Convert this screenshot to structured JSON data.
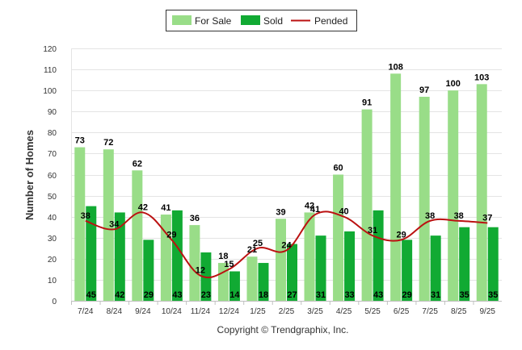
{
  "chart_data": {
    "type": "bar",
    "title": "",
    "xlabel": "",
    "ylabel": "Number of Homes",
    "ylim": [
      0,
      120
    ],
    "yticks": [
      0,
      10,
      20,
      30,
      40,
      50,
      60,
      70,
      80,
      90,
      100,
      110,
      120
    ],
    "grid": true,
    "legend_position": "top-center",
    "categories": [
      "7/24",
      "8/24",
      "9/24",
      "10/24",
      "11/24",
      "12/24",
      "1/25",
      "2/25",
      "3/25",
      "4/25",
      "5/25",
      "6/25",
      "7/25",
      "8/25",
      "9/25"
    ],
    "series": [
      {
        "name": "For Sale",
        "kind": "bar",
        "color": "#99dd88",
        "values": [
          73,
          72,
          62,
          41,
          36,
          18,
          21,
          39,
          42,
          60,
          91,
          108,
          97,
          100,
          103
        ]
      },
      {
        "name": "Sold",
        "kind": "bar",
        "color": "#11aa33",
        "values": [
          45,
          42,
          29,
          43,
          23,
          14,
          18,
          27,
          31,
          33,
          43,
          29,
          31,
          35,
          35
        ]
      },
      {
        "name": "Pended",
        "kind": "line",
        "color": "#bb1111",
        "values": [
          38,
          34,
          42,
          29,
          12,
          15,
          25,
          24,
          41,
          40,
          31,
          29,
          38,
          38,
          37
        ]
      }
    ],
    "footer": "Copyright © Trendgraphix, Inc."
  }
}
